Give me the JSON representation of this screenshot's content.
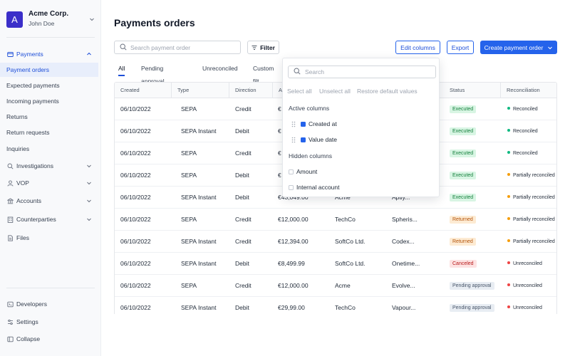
{
  "sidebar": {
    "org_initial": "A",
    "org_name": "Acme Corp.",
    "user_name": "John Doe",
    "nav": {
      "payments": "Payments",
      "payment_orders": "Payment orders",
      "expected_payments": "Expected payments",
      "incoming_payments": "Incoming payments",
      "returns": "Returns",
      "return_requests": "Return requests",
      "inquiries": "Inquiries",
      "investigations": "Investigations",
      "vop": "VOP",
      "accounts": "Accounts",
      "counterparties": "Counterparties",
      "files": "Files"
    },
    "bottom": {
      "developers": "Developers",
      "settings": "Settings",
      "collapse": "Collapse"
    }
  },
  "header": {
    "title": "Payments orders",
    "search_placeholder": "Search payment order",
    "filter_label": "Filter",
    "edit_columns_label": "Edit columns",
    "export_label": "Export",
    "create_label": "Create payment order"
  },
  "tabs": {
    "all": "All",
    "pending": "Pending approval",
    "unreconciled": "Unreconciled",
    "custom": "Custom filt"
  },
  "table": {
    "headers": {
      "created": "Created",
      "type": "Type",
      "direction": "Direction",
      "amount": "A",
      "status": "Status",
      "reconciliation": "Reconciliation"
    },
    "rows": [
      {
        "created": "06/10/2022",
        "type": "SEPA",
        "direction": "Credit",
        "amount": "€",
        "cp": "",
        "desc": "",
        "status": "Executed",
        "recon": "Reconciled"
      },
      {
        "created": "06/10/2022",
        "type": "SEPA Instant",
        "direction": "Debit",
        "amount": "€",
        "cp": "",
        "desc": "",
        "status": "Executed",
        "recon": "Reconciled"
      },
      {
        "created": "06/10/2022",
        "type": "SEPA",
        "direction": "Credit",
        "amount": "€",
        "cp": "",
        "desc": "",
        "status": "Executed",
        "recon": "Reconciled"
      },
      {
        "created": "06/10/2022",
        "type": "SEPA",
        "direction": "Debit",
        "amount": "€",
        "cp": "",
        "desc": "",
        "status": "Executed",
        "recon": "Partially reconciled"
      },
      {
        "created": "06/10/2022",
        "type": "SEPA Instant",
        "direction": "Debit",
        "amount": "€43,049.00",
        "cp": "Acme",
        "desc": "Aptiy...",
        "status": "Executed",
        "recon": "Partially reconciled"
      },
      {
        "created": "06/10/2022",
        "type": "SEPA",
        "direction": "Credit",
        "amount": "€12,000.00",
        "cp": "TechCo",
        "desc": "Spheris...",
        "status": "Returned",
        "recon": "Partially reconciled"
      },
      {
        "created": "06/10/2022",
        "type": "SEPA Instant",
        "direction": "Credit",
        "amount": "€12,394.00",
        "cp": "SoftCo Ltd.",
        "desc": "Codex...",
        "status": "Returned",
        "recon": "Partially reconciled"
      },
      {
        "created": "06/10/2022",
        "type": "SEPA Instant",
        "direction": "Debit",
        "amount": "€8,499.99",
        "cp": "SoftCo Ltd.",
        "desc": "Onetime...",
        "status": "Canceled",
        "recon": "Unreconciled"
      },
      {
        "created": "06/10/2022",
        "type": "SEPA",
        "direction": "Credit",
        "amount": "€12,000.00",
        "cp": "Acme",
        "desc": "Evolve...",
        "status": "Pending approval",
        "recon": "Unreconciled"
      },
      {
        "created": "06/10/2022",
        "type": "SEPA Instant",
        "direction": "Debit",
        "amount": "€29,99.00",
        "cp": "TechCo",
        "desc": "Vapour...",
        "status": "Pending approval",
        "recon": "Unreconciled"
      }
    ]
  },
  "columns_popover": {
    "search_placeholder": "Search",
    "select_all": "Select all",
    "unselect_all": "Unselect all",
    "restore_defaults": "Restore default values",
    "active_heading": "Active columns",
    "hidden_heading": "Hidden columns",
    "active": [
      "Created at",
      "Value date"
    ],
    "hidden": [
      "Amount",
      "Internal account"
    ]
  },
  "colors": {
    "primary": "#2563eb",
    "brand": "#3b2fc9",
    "executed": "#15803d",
    "returned": "#b45309",
    "canceled": "#b91c1c",
    "pending": "#475569"
  }
}
